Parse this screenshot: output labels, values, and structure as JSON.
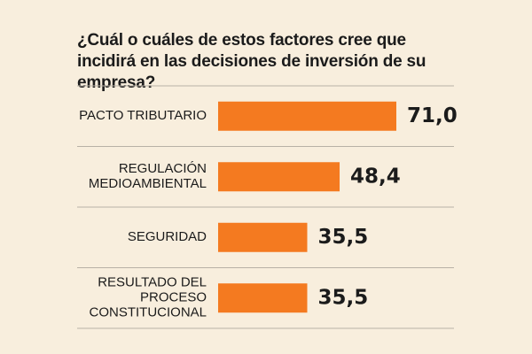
{
  "chart_data": {
    "type": "bar",
    "orientation": "horizontal",
    "title": "¿Cuál o cuáles de estos factores cree que incidirá en las decisiones de inversión de su empresa?",
    "categories": [
      [
        "PACTO TRIBUTARIO"
      ],
      [
        "REGULACIÓN",
        "MEDIOAMBIENTAL"
      ],
      [
        "SEGURIDAD"
      ],
      [
        "RESULTADO DEL",
        "PROCESO",
        "CONSTITUCIONAL"
      ]
    ],
    "values": [
      71.0,
      48.4,
      35.5,
      35.5
    ],
    "value_labels": [
      "71,0",
      "48,4",
      "35,5",
      "35,5"
    ],
    "xlim": [
      0,
      71.0
    ],
    "bar_color": "#f47a20",
    "divider_color": "#b8b1a6",
    "background": "#f8eedd"
  }
}
